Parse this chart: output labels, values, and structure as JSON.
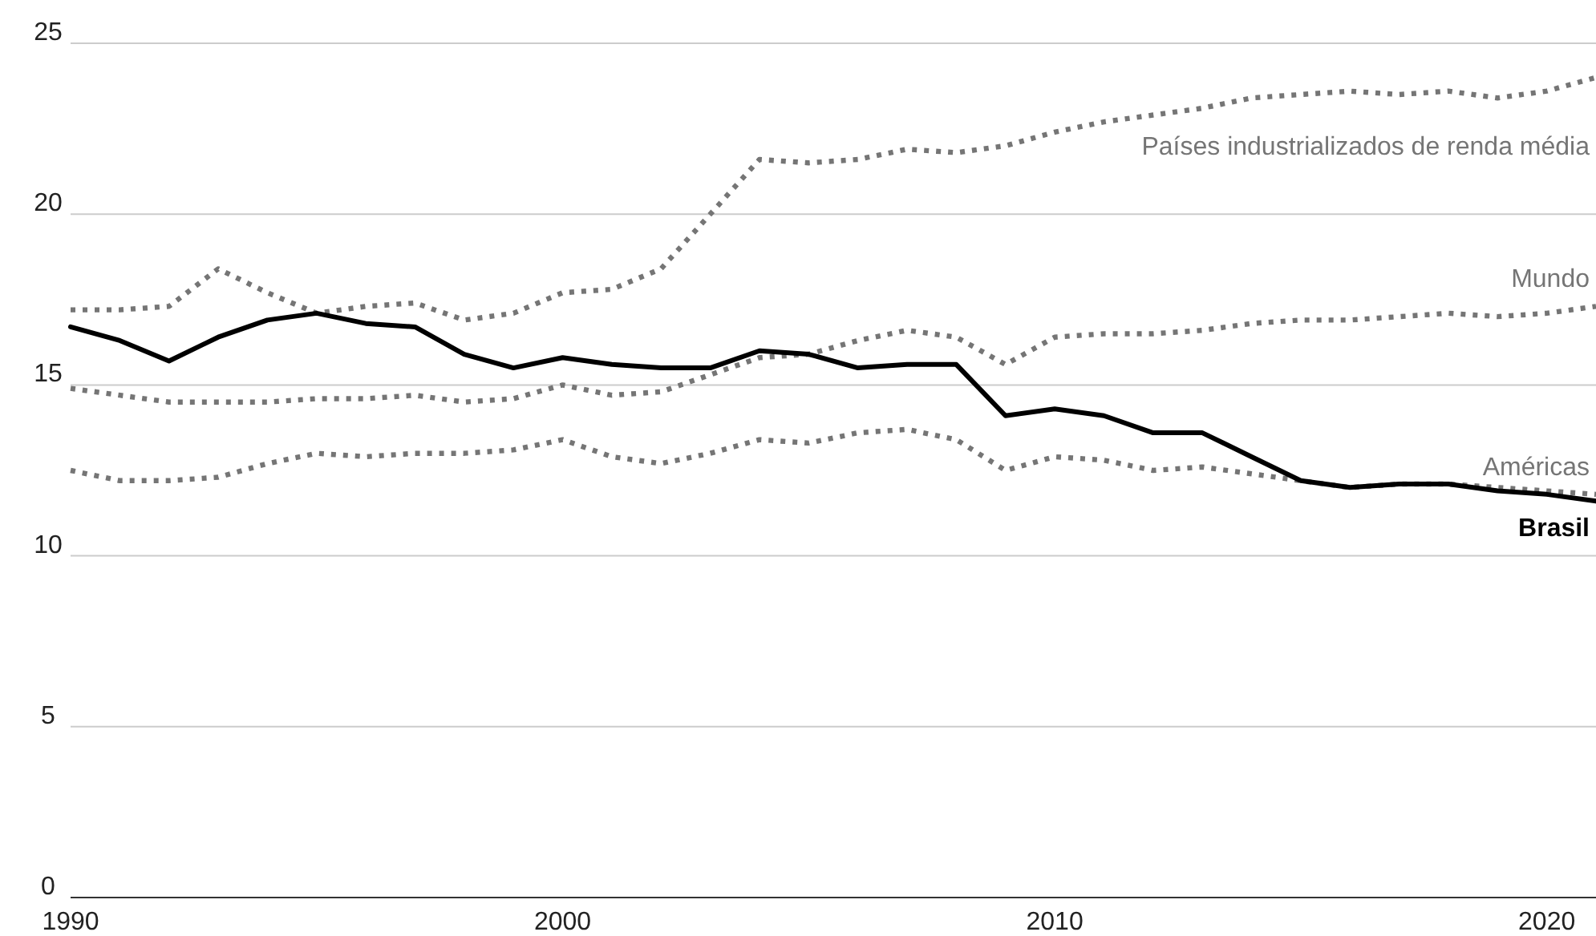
{
  "chart_data": {
    "type": "line",
    "x": [
      1990,
      1991,
      1992,
      1993,
      1994,
      1995,
      1996,
      1997,
      1998,
      1999,
      2000,
      2001,
      2002,
      2003,
      2004,
      2005,
      2006,
      2007,
      2008,
      2009,
      2010,
      2011,
      2012,
      2013,
      2014,
      2015,
      2016,
      2017,
      2018,
      2019,
      2020,
      2021
    ],
    "series": [
      {
        "name": "Países industrializados de renda média",
        "color": "#757575",
        "line_style": "dotted",
        "values": [
          17.2,
          17.2,
          17.3,
          18.4,
          17.7,
          17.1,
          17.3,
          17.4,
          16.9,
          17.1,
          17.7,
          17.8,
          18.4,
          20.0,
          21.6,
          21.5,
          21.6,
          21.9,
          21.8,
          22.0,
          22.4,
          22.7,
          22.9,
          23.1,
          23.4,
          23.5,
          23.6,
          23.5,
          23.6,
          23.4,
          23.6,
          24.0
        ]
      },
      {
        "name": "Mundo",
        "color": "#757575",
        "line_style": "dotted",
        "values": [
          14.9,
          14.7,
          14.5,
          14.5,
          14.5,
          14.6,
          14.6,
          14.7,
          14.5,
          14.6,
          15.0,
          14.7,
          14.8,
          15.3,
          15.8,
          15.9,
          16.3,
          16.6,
          16.4,
          15.6,
          16.4,
          16.5,
          16.5,
          16.6,
          16.8,
          16.9,
          16.9,
          17.0,
          17.1,
          17.0,
          17.1,
          17.3
        ]
      },
      {
        "name": "Américas",
        "color": "#757575",
        "line_style": "dotted",
        "values": [
          12.5,
          12.2,
          12.2,
          12.3,
          12.7,
          13.0,
          12.9,
          13.0,
          13.0,
          13.1,
          13.4,
          12.9,
          12.7,
          13.0,
          13.4,
          13.3,
          13.6,
          13.7,
          13.4,
          12.5,
          12.9,
          12.8,
          12.5,
          12.6,
          12.4,
          12.2,
          12.0,
          12.1,
          12.1,
          12.0,
          11.9,
          11.8
        ]
      },
      {
        "name": "Brasil",
        "color": "#000000",
        "line_style": "solid",
        "values": [
          16.7,
          16.3,
          15.7,
          16.4,
          16.9,
          17.1,
          16.8,
          16.7,
          15.9,
          15.5,
          15.8,
          15.6,
          15.5,
          15.5,
          16.0,
          15.9,
          15.5,
          15.6,
          15.6,
          14.1,
          14.3,
          14.1,
          13.6,
          13.6,
          12.9,
          12.2,
          12.0,
          12.1,
          12.1,
          11.9,
          11.8,
          11.6
        ]
      }
    ],
    "xlim": [
      1990,
      2021
    ],
    "xticks": [
      1990,
      2000,
      2010,
      2020
    ],
    "ylim": [
      0,
      25
    ],
    "yticks": [
      0,
      5,
      10,
      15,
      20,
      25
    ],
    "grid": "y",
    "marker": "none"
  }
}
